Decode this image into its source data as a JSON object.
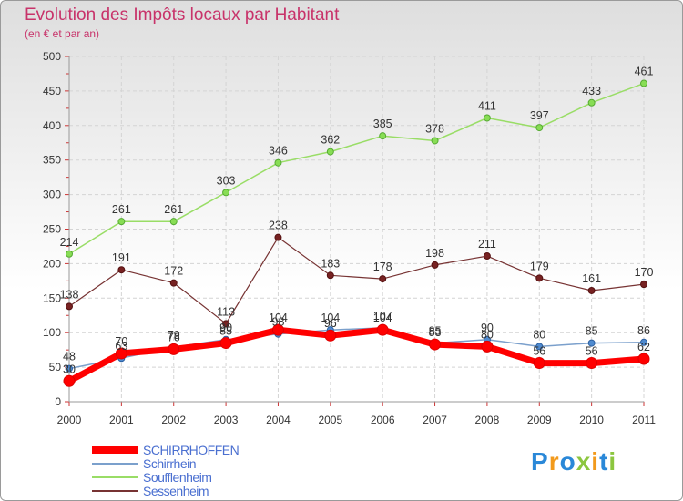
{
  "chart_data": {
    "type": "line",
    "title": "Evolution des Impôts locaux par Habitant",
    "subtitle": "(en € et par an)",
    "xlabel": "",
    "ylabel": "",
    "ylim": [
      0,
      500
    ],
    "yticks": [
      0,
      50,
      100,
      150,
      200,
      250,
      300,
      350,
      400,
      450,
      500
    ],
    "grid": true,
    "legend_position": "bottom-left",
    "x": [
      "2000",
      "2001",
      "2002",
      "2003",
      "2004",
      "2005",
      "2006",
      "2007",
      "2008",
      "2009",
      "2010",
      "2011"
    ],
    "series": [
      {
        "name": "SCHIRRHOFFEN",
        "color": "#ff0000",
        "values": [
          30,
          70,
          76,
          85,
          104,
          96,
          104,
          83,
          80,
          56,
          56,
          62
        ]
      },
      {
        "name": "Schirrhein",
        "color": "#6699cc",
        "values": [
          48,
          63,
          79,
          90,
          98,
          104,
          107,
          85,
          90,
          80,
          85,
          86
        ]
      },
      {
        "name": "Soufflenheim",
        "color": "#99dd66",
        "values": [
          214,
          261,
          261,
          303,
          346,
          362,
          385,
          378,
          411,
          397,
          433,
          461
        ]
      },
      {
        "name": "Sessenheim",
        "color": "#772222",
        "values": [
          138,
          191,
          172,
          113,
          238,
          183,
          178,
          198,
          211,
          179,
          161,
          170
        ]
      }
    ]
  },
  "logo": {
    "letters": [
      "P",
      "r",
      "o",
      "x",
      "i",
      "t",
      "i"
    ],
    "colors": [
      "#2a88d8",
      "#f29a1c",
      "#2a88d8",
      "#8cc63f",
      "#f29a1c",
      "#2a88d8",
      "#8cc63f"
    ]
  }
}
